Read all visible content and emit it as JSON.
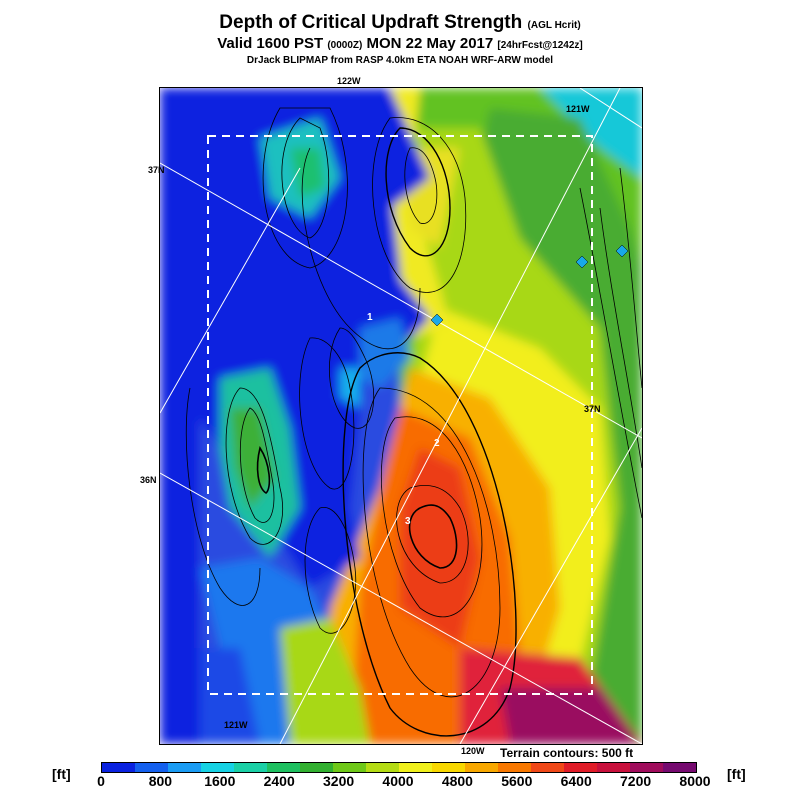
{
  "header": {
    "title": "Depth of Critical Updraft Strength",
    "title_sub": "(AGL Hcrit)",
    "valid_prefix": "Valid 1600 PST",
    "valid_zone": "(0000Z)",
    "valid_date": "MON 22 May 2017",
    "forecast": "[24hrFcst@1242z]",
    "model": "DrJack BLIPMAP from RASP 4.0km ETA NOAH WRF-ARW model"
  },
  "map": {
    "lat_labels": [
      "37N",
      "37N",
      "36N"
    ],
    "lon_labels": [
      "122W",
      "121W",
      "121W",
      "120W"
    ],
    "sites": [
      "1",
      "2",
      "3"
    ],
    "terrain_note": "Terrain contours: 500 ft"
  },
  "colorbar": {
    "unit": "[ft]",
    "ticks": [
      "0",
      "800",
      "1600",
      "2400",
      "3200",
      "4000",
      "4800",
      "5600",
      "6400",
      "7200",
      "8000"
    ],
    "colors": [
      "#0a22e0",
      "#1460ee",
      "#1a9cf4",
      "#16d2e4",
      "#1ad0a6",
      "#1ec060",
      "#32b030",
      "#6ec818",
      "#b4dc14",
      "#f0f01c",
      "#f8d800",
      "#f8a800",
      "#f87800",
      "#f04818",
      "#e01c28",
      "#c8103c",
      "#a00c5c",
      "#760a70"
    ]
  }
}
